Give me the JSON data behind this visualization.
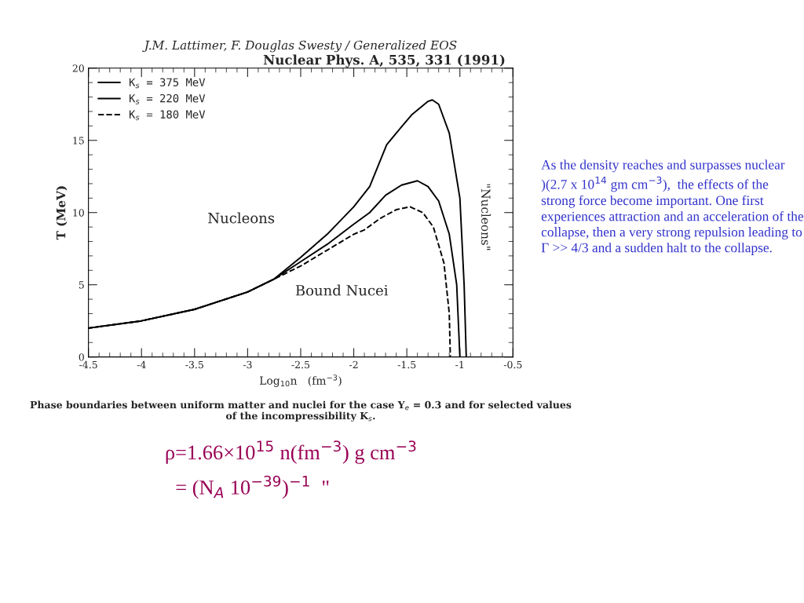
{
  "chart_data": {
    "type": "line",
    "title": "J.M. Lattimer, F. Douglas Swesty / Generalized EOS",
    "subtitle": "Nuclear Phys. A, 535, 331 (1991)",
    "xlabel": "Log$_{10}$n   (fm$^{−3}$)",
    "ylabel": "T (MeV)",
    "xlim": [
      -4.5,
      -0.5
    ],
    "ylim": [
      0,
      20
    ],
    "xticks": [
      -4.5,
      -4,
      -3.5,
      -3,
      -2.5,
      -2,
      -1.5,
      -1,
      -0.5
    ],
    "yticks": [
      0,
      5,
      10,
      15,
      20
    ],
    "grid": false,
    "legend": "top left",
    "series": [
      {
        "name": "K$_{s}$ = 375 MeV",
        "color": "#000000",
        "line_style": "solid",
        "x": [
          -4.5,
          -4.0,
          -3.5,
          -3.0,
          -2.75,
          -2.5,
          -2.25,
          -2.0,
          -1.85,
          -1.69,
          -1.6,
          -1.45,
          -1.3,
          -1.26,
          -1.2,
          -1.1,
          -1.0,
          -0.96,
          -0.94
        ],
        "values": [
          2.0,
          2.5,
          3.3,
          4.5,
          5.4,
          6.9,
          8.5,
          10.4,
          11.8,
          14.7,
          15.5,
          16.8,
          17.7,
          17.8,
          17.5,
          15.5,
          11,
          5,
          0
        ]
      },
      {
        "name": "K$_{s}$ = 220 MeV",
        "color": "#000000",
        "line_style": "solid",
        "x": [
          -4.5,
          -4.0,
          -3.5,
          -3.0,
          -2.75,
          -2.5,
          -2.25,
          -2.0,
          -1.85,
          -1.7,
          -1.55,
          -1.4,
          -1.3,
          -1.2,
          -1.1,
          -1.03,
          -1.0
        ],
        "values": [
          2.0,
          2.5,
          3.3,
          4.5,
          5.4,
          6.6,
          7.8,
          9.2,
          10.0,
          11.2,
          11.9,
          12.2,
          11.8,
          10.8,
          8.5,
          5,
          0
        ]
      },
      {
        "name": "K$_{s}$ = 180 MeV",
        "color": "#000000",
        "line_style": "dashed",
        "x": [
          -4.5,
          -4.0,
          -3.5,
          -3.0,
          -2.75,
          -2.5,
          -2.25,
          -2.0,
          -1.9,
          -1.75,
          -1.6,
          -1.47,
          -1.35,
          -1.25,
          -1.15,
          -1.1,
          -1.09
        ],
        "values": [
          2.0,
          2.5,
          3.3,
          4.5,
          5.4,
          6.3,
          7.4,
          8.5,
          8.8,
          9.6,
          10.2,
          10.4,
          10.0,
          9.0,
          6.5,
          3,
          0
        ]
      }
    ],
    "annotations": [
      "Nucleons",
      "Bound Nucei",
      "\"Nucleons\"",
      "Phase boundaries between uniform matter and nuclei for the case Y$_{e}$ = 0.3 and for selected values\nof the incompressibility K$_{s}$.",
      "As the density reaches and surpasses nuclear )(2.7 x 10$^{14}$ gm cm$^{−3}$),  the effects of the strong force become important. One first experiences attraction and an acceleration of the collapse, then a very strong repulsion leading to Γ >> 4/3 and a sudden halt to the collapse.",
      "ρ=1.66×10$^{15}$ n(fm$^{−3}$) g cm$^{−3}$",
      "= (N$_{A}$ 10$^{−39}$)$^{−1}$  \""
    ]
  }
}
